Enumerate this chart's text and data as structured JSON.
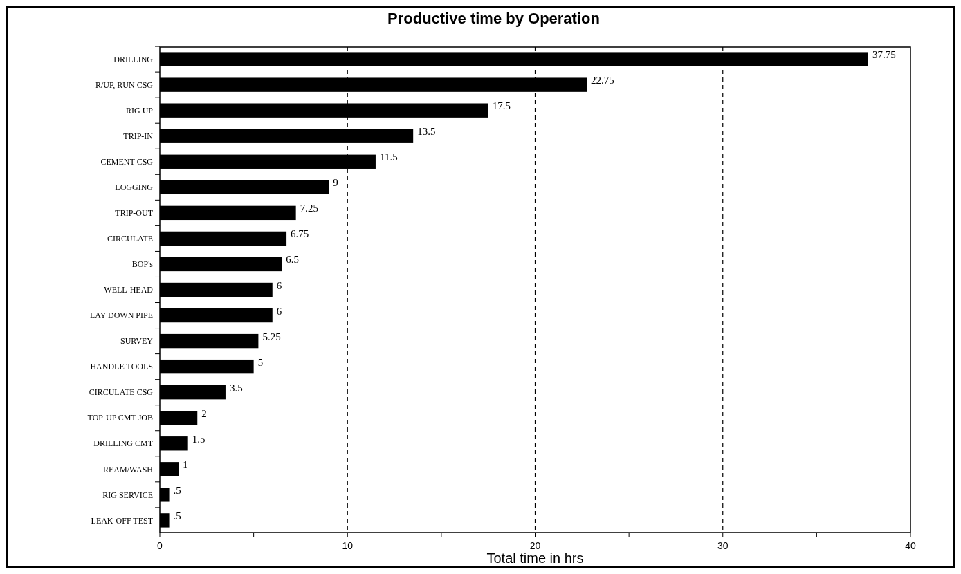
{
  "chart_data": {
    "type": "bar",
    "orientation": "horizontal",
    "title": "Productive time by Operation",
    "xlabel": "Total time in hrs",
    "categories": [
      "DRILLING",
      "R/UP, RUN CSG",
      "RIG UP",
      "TRIP-IN",
      "CEMENT CSG",
      "LOGGING",
      "TRIP-OUT",
      "CIRCULATE",
      "BOP's",
      "WELL-HEAD",
      "LAY DOWN PIPE",
      "SURVEY",
      "HANDLE TOOLS",
      "CIRCULATE CSG",
      "TOP-UP CMT JOB",
      "DRILLING CMT",
      "REAM/WASH",
      "RIG SERVICE",
      "LEAK-OFF TEST"
    ],
    "values": [
      37.75,
      22.75,
      17.5,
      13.5,
      11.5,
      9,
      7.25,
      6.75,
      6.5,
      6,
      6,
      5.25,
      5,
      3.5,
      2,
      1.5,
      1,
      0.5,
      0.5
    ],
    "value_labels": [
      "37.75",
      "22.75",
      "17.5",
      "13.5",
      "11.5",
      "9",
      "7.25",
      "6.75",
      "6.5",
      "6",
      "6",
      "5.25",
      "5",
      "3.5",
      "2",
      "1.5",
      "1",
      ".5",
      ".5"
    ],
    "color": "#000000",
    "xlim": [
      0,
      40
    ],
    "xticks": [
      0,
      {
        "value": 5,
        "label": null
      },
      10,
      {
        "value": 15,
        "label": null
      },
      20,
      {
        "value": 25,
        "label": null
      },
      30,
      {
        "value": 35,
        "label": null
      },
      40
    ],
    "grid": "x"
  }
}
